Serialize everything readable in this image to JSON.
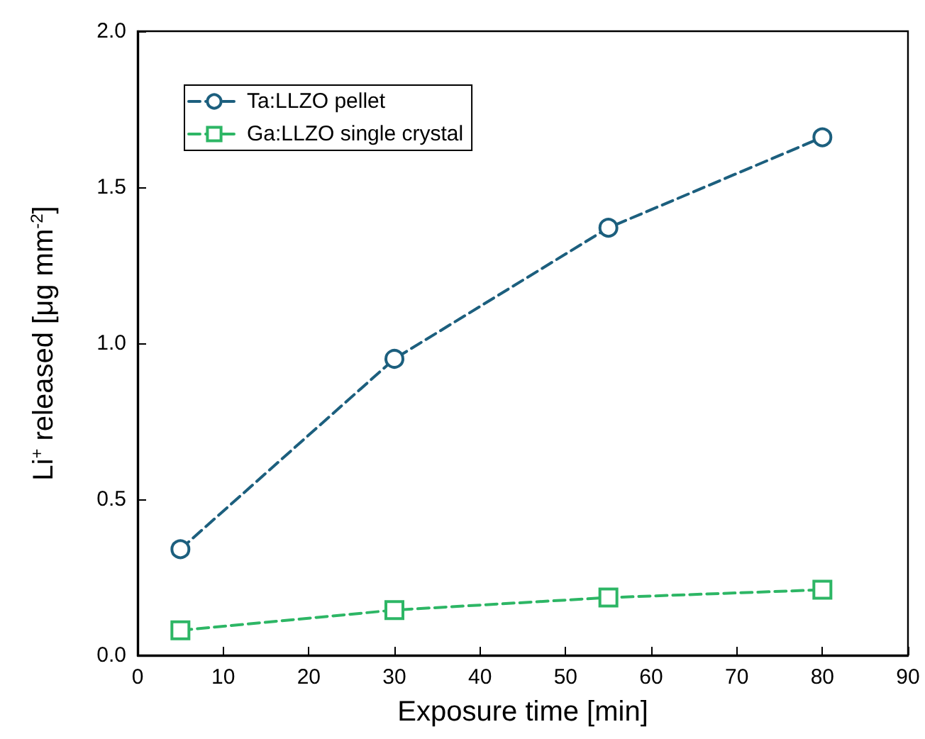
{
  "chart_data": {
    "type": "line",
    "xlabel": "Exposure time [min]",
    "ylabel": "Li$^{+}$ released [μg mm$^{-2}$]",
    "x": [
      5,
      30,
      55,
      80
    ],
    "series": [
      {
        "name": "Ta:LLZO pellet",
        "color": "#1c5f7e",
        "marker": "circle",
        "values": [
          0.34,
          0.95,
          1.37,
          1.66
        ]
      },
      {
        "name": "Ga:LLZO single crystal",
        "color": "#2db665",
        "marker": "square",
        "values": [
          0.08,
          0.145,
          0.185,
          0.21
        ]
      }
    ],
    "xlim": [
      0,
      90
    ],
    "xticks": [
      0,
      10,
      20,
      30,
      40,
      50,
      60,
      70,
      80,
      90
    ],
    "ylim": [
      0,
      2
    ],
    "yticks": [
      {
        "value": 0,
        "label": "0.0"
      },
      0.5,
      {
        "value": 1,
        "label": "1.0"
      },
      1.5,
      {
        "value": 2,
        "label": "2.0"
      }
    ],
    "line_style": "dashed",
    "legend": "top left",
    "grid": false
  }
}
